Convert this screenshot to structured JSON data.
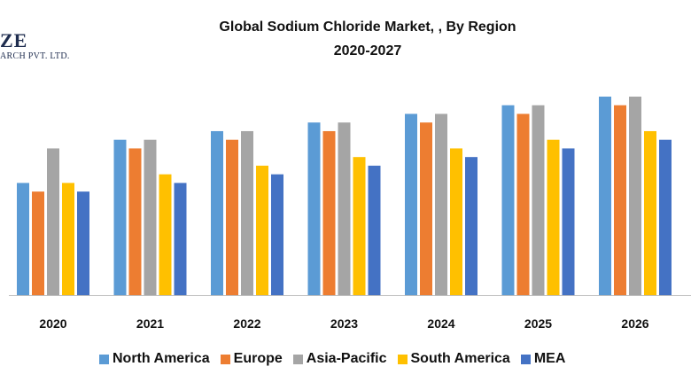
{
  "logo": {
    "big": "ZE",
    "small": "ARCH PVT. LTD."
  },
  "chart_data": {
    "type": "bar",
    "title": "Global Sodium Chloride Market, , By Region",
    "subtitle": "2020-2027",
    "xlabel": "",
    "ylabel": "",
    "categories": [
      "2020",
      "2021",
      "2022",
      "2023",
      "2024",
      "2025",
      "2026"
    ],
    "ylim": [
      0,
      23
    ],
    "grid": false,
    "legend_position": "bottom",
    "series": [
      {
        "name": "North America",
        "color": "#5b9bd5",
        "values": [
          13,
          18,
          19,
          20,
          21,
          22,
          23
        ]
      },
      {
        "name": "Europe",
        "color": "#ed7d31",
        "values": [
          12,
          17,
          18,
          19,
          20,
          21,
          22
        ]
      },
      {
        "name": "Asia-Pacific",
        "color": "#a5a5a5",
        "values": [
          17,
          18,
          19,
          20,
          21,
          22,
          23
        ]
      },
      {
        "name": "South America",
        "color": "#ffc000",
        "values": [
          13,
          14,
          15,
          16,
          17,
          18,
          19
        ]
      },
      {
        "name": "MEA",
        "color": "#4472c4",
        "values": [
          12,
          13,
          14,
          15,
          16,
          17,
          18
        ]
      }
    ]
  }
}
